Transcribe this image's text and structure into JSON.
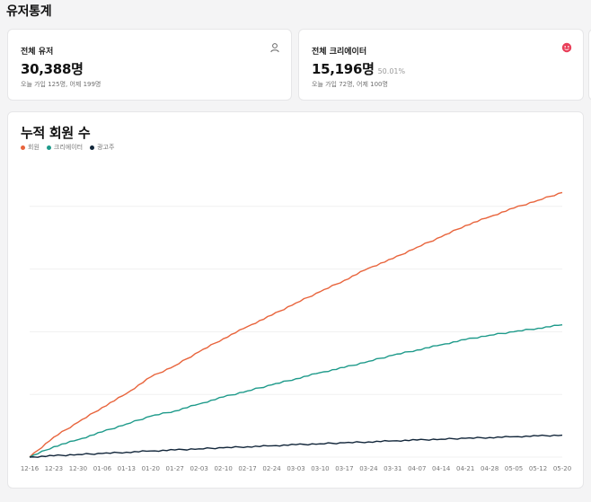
{
  "page_title": "유저통계",
  "stats": {
    "users": {
      "label": "전체 유저",
      "value": "30,388명",
      "sub": "오늘 가입 125명, 어제 199명",
      "icon": "user-icon"
    },
    "creators": {
      "label": "전체 크리에이터",
      "value": "15,196명",
      "percent": "50.01%",
      "sub": "오늘 가입 72명, 어제 100명",
      "icon": "creator-badge-icon"
    }
  },
  "colors": {
    "members": "#e8643c",
    "creators": "#1e9a8a",
    "advertisers": "#12263a"
  },
  "chart_data": {
    "type": "line",
    "title": "누적 회원 수",
    "categories": [
      "12-16",
      "12-23",
      "12-30",
      "01-06",
      "01-13",
      "01-20",
      "01-27",
      "02-03",
      "02-10",
      "02-17",
      "02-24",
      "03-03",
      "03-10",
      "03-17",
      "03-24",
      "03-31",
      "04-07",
      "04-14",
      "04-21",
      "04-28",
      "05-05",
      "05-12",
      "05-20"
    ],
    "series": [
      {
        "name": "회원",
        "color": "#e8643c",
        "values": [
          0,
          2300,
          4000,
          5700,
          7300,
          9200,
          10500,
          12100,
          13600,
          15000,
          16300,
          17700,
          19000,
          20300,
          21700,
          22800,
          24100,
          25300,
          26600,
          27600,
          28600,
          29500,
          30388
        ]
      },
      {
        "name": "크리에이터",
        "color": "#1e9a8a",
        "values": [
          0,
          1200,
          2000,
          2900,
          3800,
          4700,
          5300,
          6100,
          6900,
          7600,
          8300,
          9000,
          9700,
          10300,
          11000,
          11700,
          12300,
          12900,
          13500,
          14000,
          14400,
          14800,
          15196
        ]
      },
      {
        "name": "광고주",
        "color": "#12263a",
        "values": [
          0,
          150,
          300,
          420,
          560,
          700,
          820,
          950,
          1070,
          1190,
          1300,
          1420,
          1530,
          1640,
          1750,
          1860,
          1960,
          2060,
          2160,
          2250,
          2340,
          2430,
          2520
        ]
      }
    ],
    "ylim": [
      0,
      36000
    ],
    "grid": true,
    "legend_position": "top-left"
  }
}
